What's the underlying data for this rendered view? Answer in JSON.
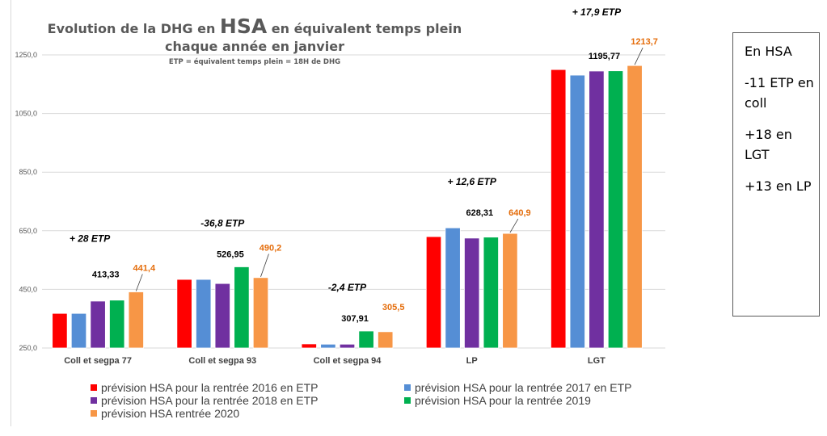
{
  "chart_data": {
    "type": "bar",
    "title": {
      "prefix": "Evolution de la DHG en ",
      "emphasis": "HSA",
      "suffix": " en équivalent temps plein",
      "line2": "chaque année en janvier"
    },
    "subtitle": "ETP = équivalent temps plein = 18H de DHG",
    "xlabel": "",
    "ylabel": "",
    "ylim": [
      250,
      1250
    ],
    "yticks": [
      250,
      450,
      650,
      850,
      1050,
      1250
    ],
    "ytick_labels": [
      "250,0",
      "450,0",
      "650,0",
      "850,0",
      "1050,0",
      "1250,0"
    ],
    "grid": true,
    "legend_position": "bottom",
    "categories": [
      "Coll et segpa 77",
      "Coll et segpa 93",
      "Coll et segpa 94",
      "LP",
      "LGT"
    ],
    "series": [
      {
        "name": "prévision HSA pour la rentrée 2016 en ETP",
        "color": "#ff0000",
        "values": [
          368,
          484,
          264,
          630,
          1200
        ]
      },
      {
        "name": "prévision HSA pour la rentrée 2017 en ETP",
        "color": "#558ed5",
        "values": [
          368,
          484,
          263,
          660,
          1181
        ]
      },
      {
        "name": "prévision HSA pour la rentrée 2018 en ETP",
        "color": "#7030a0",
        "values": [
          410,
          470,
          263,
          625,
          1195
        ]
      },
      {
        "name": "prévision HSA pour la rentrée 2019",
        "color": "#00b050",
        "values": [
          413.33,
          526.95,
          307.91,
          628.31,
          1195.77
        ]
      },
      {
        "name": "prévision HSA rentrée 2020",
        "color": "#f79646",
        "values": [
          441.4,
          490.2,
          305.5,
          640.9,
          1213.7
        ]
      }
    ],
    "data_labels": [
      {
        "category": "Coll et segpa 77",
        "label_2019": "413,33",
        "label_2020": "441,4",
        "delta": "+  28 ETP"
      },
      {
        "category": "Coll et segpa 93",
        "label_2019": "526,95",
        "label_2020": "490,2",
        "delta": "-36,8 ETP"
      },
      {
        "category": "Coll et segpa 94",
        "label_2019": "307,91",
        "label_2020": "305,5",
        "delta": "-2,4 ETP"
      },
      {
        "category": "LP",
        "label_2019": "628,31",
        "label_2020": "640,9",
        "delta": "+  12,6 ETP"
      },
      {
        "category": "LGT",
        "label_2019": "1195,77",
        "label_2020": "1213,7",
        "delta": "+  17,9 ETP"
      }
    ],
    "label_colors": {
      "value_2019": "#000000",
      "value_2020": "#e46c0a",
      "delta": "#000000",
      "axis": "#595959"
    }
  },
  "side_note": {
    "lines": [
      "En HSA",
      "-11 ETP en coll",
      "+18 en LGT",
      "+13 en LP"
    ]
  }
}
